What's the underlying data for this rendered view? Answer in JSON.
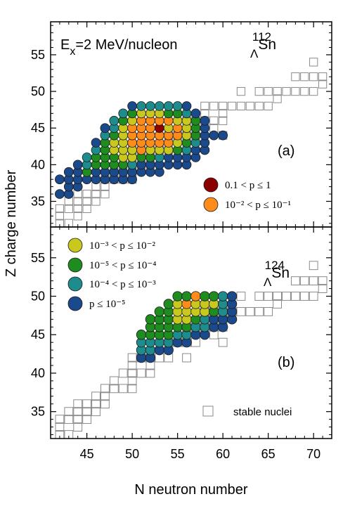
{
  "chart_data": {
    "type": "scatter",
    "xlabel": "N neutron number",
    "ylabel": "Z charge number",
    "xlim": [
      41,
      72
    ],
    "x_ticks": [
      45,
      50,
      55,
      60,
      65,
      70
    ],
    "y_ticks": [
      35,
      40,
      45,
      50,
      55
    ],
    "colors": {
      "dark_red": "#8b0000",
      "orange": "#ff8c1a",
      "yellow": "#c8c81e",
      "green": "#1e8c1e",
      "teal": "#1e8c8c",
      "blue": "#1a4a8c"
    },
    "legend": [
      {
        "label": "0.1 < p ≤ 1",
        "color_key": "dark_red"
      },
      {
        "label": "10⁻² < p ≤ 10⁻¹",
        "color_key": "orange"
      },
      {
        "label": "10⁻³ < p ≤ 10⁻²",
        "color_key": "yellow"
      },
      {
        "label": "10⁻⁵ < p ≤ 10⁻⁴",
        "color_key": "green"
      },
      {
        "label": "10⁻⁴ < p ≤ 10⁻³",
        "color_key": "teal"
      },
      {
        "label": "p ≤ 10⁻⁵",
        "color_key": "blue"
      }
    ],
    "stable_label": "stable nuclei",
    "stable_nuclei": [
      [
        42,
        32
      ],
      [
        42,
        33
      ],
      [
        42,
        34
      ],
      [
        43,
        32
      ],
      [
        43,
        34
      ],
      [
        43,
        35
      ],
      [
        44,
        33
      ],
      [
        44,
        34
      ],
      [
        44,
        35
      ],
      [
        44,
        36
      ],
      [
        45,
        34
      ],
      [
        45,
        35
      ],
      [
        45,
        36
      ],
      [
        46,
        35
      ],
      [
        46,
        36
      ],
      [
        46,
        37
      ],
      [
        47,
        36
      ],
      [
        47,
        37
      ],
      [
        47,
        38
      ],
      [
        48,
        38
      ],
      [
        48,
        39
      ],
      [
        49,
        38
      ],
      [
        49,
        40
      ],
      [
        50,
        38
      ],
      [
        50,
        39
      ],
      [
        50,
        40
      ],
      [
        50,
        41
      ],
      [
        50,
        42
      ],
      [
        51,
        40
      ],
      [
        51,
        42
      ],
      [
        52,
        40
      ],
      [
        52,
        41
      ],
      [
        52,
        42
      ],
      [
        53,
        42
      ],
      [
        54,
        42
      ],
      [
        54,
        44
      ],
      [
        55,
        44
      ],
      [
        56,
        42
      ],
      [
        56,
        44
      ],
      [
        56,
        46
      ],
      [
        57,
        44
      ],
      [
        57,
        46
      ],
      [
        58,
        46
      ],
      [
        58,
        47
      ],
      [
        58,
        48
      ],
      [
        59,
        45
      ],
      [
        59,
        46
      ],
      [
        59,
        48
      ],
      [
        60,
        44
      ],
      [
        60,
        46
      ],
      [
        60,
        47
      ],
      [
        60,
        48
      ],
      [
        61,
        48
      ],
      [
        62,
        48
      ],
      [
        62,
        50
      ],
      [
        63,
        48
      ],
      [
        64,
        48
      ],
      [
        64,
        50
      ],
      [
        65,
        48
      ],
      [
        65,
        50
      ],
      [
        66,
        49
      ],
      [
        66,
        50
      ],
      [
        67,
        50
      ],
      [
        68,
        50
      ],
      [
        68,
        52
      ],
      [
        69,
        50
      ],
      [
        69,
        52
      ],
      [
        70,
        50
      ],
      [
        70,
        52
      ],
      [
        70,
        54
      ],
      [
        71,
        51
      ],
      [
        71,
        52
      ]
    ],
    "panels": [
      {
        "name": "112-Lambda-Sn",
        "ylim": [
          31.5,
          59.5
        ],
        "title_text": "E_x=2 MeV/nucleon",
        "title_base": "E",
        "title_sub": "x",
        "title_rest": "=2 MeV/nucleon",
        "nucleus_mass": "112",
        "nucleus_lambda": "Λ",
        "nucleus_symbol": "Sn",
        "panel_label": "(a)",
        "data_key": "a"
      },
      {
        "name": "124-Lambda-Sn",
        "ylim": [
          31.5,
          59
        ],
        "nucleus_mass": "124",
        "nucleus_lambda": "Λ",
        "nucleus_symbol": "Sn",
        "panel_label": "(b)",
        "data_key": "b"
      }
    ],
    "fragments_a": {
      "row_xmin_z": [
        {
          "z": 36,
          "n_start": 42,
          "codes": "BB"
        },
        {
          "z": 37,
          "n_start": 43,
          "codes": "BB"
        },
        {
          "z": 38,
          "n_start": 42,
          "codes": "BBBBBBBBB"
        },
        {
          "z": 39,
          "n_start": 43,
          "codes": "BBGBBBBBBBB"
        },
        {
          "z": 40,
          "n_start": 44,
          "codes": "BTGGGGTBBBBBB"
        },
        {
          "z": 41,
          "n_start": 45,
          "codes": "TGGGYYGGTBBBB"
        },
        {
          "z": 42,
          "n_start": 46,
          "codes": "TGYYYOYYYGTBB"
        },
        {
          "z": 43,
          "n_start": 46,
          "codes": "BGYYOOOOOYGTB"
        },
        {
          "z": 44,
          "n_start": 47,
          "codes": "TGYOOOOOOYGBBB"
        },
        {
          "z": 45,
          "n_start": 47,
          "codes": "BTYOOORYOYGB"
        },
        {
          "z": 46,
          "n_start": 48,
          "codes": "TGYOOOOYYGB"
        },
        {
          "z": 47,
          "n_start": 49,
          "codes": "TGYYYGGTB"
        },
        {
          "z": 48,
          "n_start": 50,
          "codes": "BTTTTTB"
        }
      ]
    },
    "fragments_b": {
      "row_xmin_z": [
        {
          "z": 42,
          "n_start": 51,
          "codes": "BB"
        },
        {
          "z": 43,
          "n_start": 51,
          "codes": "TTBB"
        },
        {
          "z": 44,
          "n_start": 51,
          "codes": "TTTTBB"
        },
        {
          "z": 45,
          "n_start": 51,
          "codes": "GGGGTTBB"
        },
        {
          "z": 46,
          "n_start": 52,
          "codes": "GGGGGTTBB"
        },
        {
          "z": 47,
          "n_start": 52,
          "codes": "GGGYYGTBBB"
        },
        {
          "z": 48,
          "n_start": 53,
          "codes": "GGYYYYGTB"
        },
        {
          "z": 49,
          "n_start": 54,
          "codes": "GYOYYYTB"
        },
        {
          "z": 50,
          "n_start": 55,
          "codes": "GGOGGTB"
        }
      ]
    }
  }
}
